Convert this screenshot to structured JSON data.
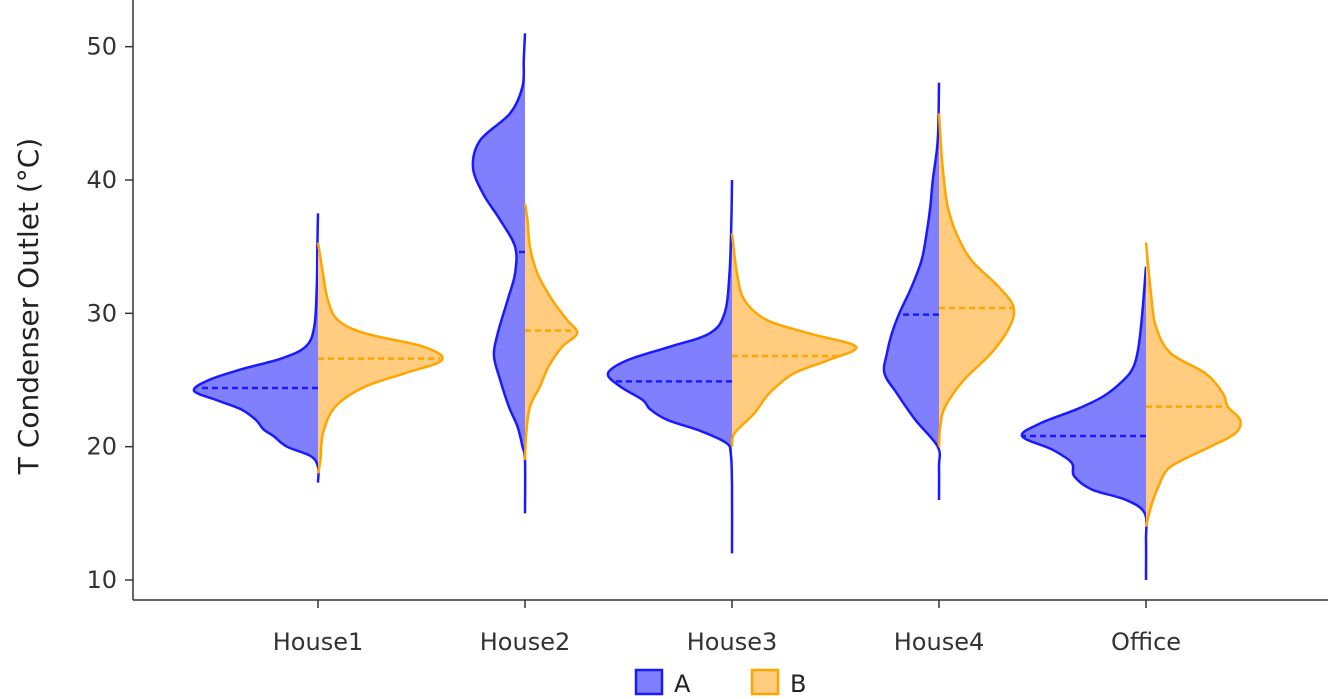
{
  "chart_data": {
    "type": "violin",
    "title": "",
    "xlabel": "",
    "ylabel": "T Condenser Outlet (°C)",
    "ylim": [
      8.5,
      53.5
    ],
    "yticks": [
      10,
      20,
      30,
      40,
      50
    ],
    "categories": [
      "House1",
      "House2",
      "House3",
      "House4",
      "Office"
    ],
    "legend": {
      "position": "bottom",
      "entries": [
        "A",
        "B"
      ]
    },
    "grid": false,
    "split": true,
    "colors": {
      "A": "#1a1aff",
      "B": "#ffa500",
      "A_fill": "#8080ff",
      "B_fill": "#ffcc80"
    },
    "series": [
      {
        "name": "A",
        "side": "left",
        "medians": [
          24.4,
          34.6,
          24.9,
          29.9,
          20.8
        ],
        "violins": [
          {
            "category": "House1",
            "points": [
              [
                17.3,
                0.0
              ],
              [
                18.5,
                0.0
              ],
              [
                19.3,
                0.06
              ],
              [
                20.0,
                0.25
              ],
              [
                20.8,
                0.36
              ],
              [
                21.3,
                0.44
              ],
              [
                22.0,
                0.5
              ],
              [
                22.8,
                0.62
              ],
              [
                23.5,
                0.82
              ],
              [
                24.2,
                1.0
              ],
              [
                25.0,
                0.88
              ],
              [
                25.8,
                0.62
              ],
              [
                26.6,
                0.3
              ],
              [
                27.5,
                0.1
              ],
              [
                29.0,
                0.03
              ],
              [
                32.0,
                0.01
              ],
              [
                35.0,
                0.005
              ],
              [
                37.5,
                0.0
              ]
            ]
          },
          {
            "category": "House2",
            "points": [
              [
                15.0,
                0.0
              ],
              [
                19.0,
                0.0
              ],
              [
                20.0,
                0.02
              ],
              [
                21.5,
                0.06
              ],
              [
                23.0,
                0.13
              ],
              [
                25.0,
                0.2
              ],
              [
                26.8,
                0.25
              ],
              [
                28.5,
                0.22
              ],
              [
                31.0,
                0.14
              ],
              [
                33.0,
                0.08
              ],
              [
                35.0,
                0.08
              ],
              [
                37.0,
                0.2
              ],
              [
                39.0,
                0.34
              ],
              [
                41.0,
                0.42
              ],
              [
                43.0,
                0.36
              ],
              [
                45.0,
                0.12
              ],
              [
                47.0,
                0.02
              ],
              [
                49.0,
                0.01
              ],
              [
                51.0,
                0.0
              ]
            ]
          },
          {
            "category": "House3",
            "points": [
              [
                12.0,
                0.0
              ],
              [
                17.0,
                0.0
              ],
              [
                19.5,
                0.01
              ],
              [
                20.3,
                0.05
              ],
              [
                21.2,
                0.26
              ],
              [
                22.0,
                0.52
              ],
              [
                22.8,
                0.66
              ],
              [
                23.5,
                0.72
              ],
              [
                24.5,
                0.9
              ],
              [
                25.5,
                1.0
              ],
              [
                26.5,
                0.84
              ],
              [
                27.5,
                0.5
              ],
              [
                28.5,
                0.18
              ],
              [
                30.0,
                0.06
              ],
              [
                33.0,
                0.02
              ],
              [
                37.0,
                0.005
              ],
              [
                40.0,
                0.0
              ]
            ]
          },
          {
            "category": "House4",
            "points": [
              [
                16.0,
                0.0
              ],
              [
                18.5,
                0.0
              ],
              [
                20.0,
                0.01
              ],
              [
                22.0,
                0.19
              ],
              [
                24.0,
                0.34
              ],
              [
                25.5,
                0.44
              ],
              [
                27.0,
                0.42
              ],
              [
                28.5,
                0.38
              ],
              [
                30.0,
                0.32
              ],
              [
                32.0,
                0.22
              ],
              [
                34.0,
                0.14
              ],
              [
                36.0,
                0.1
              ],
              [
                38.0,
                0.07
              ],
              [
                40.0,
                0.05
              ],
              [
                43.0,
                0.01
              ],
              [
                47.3,
                0.0
              ]
            ]
          },
          {
            "category": "Office",
            "points": [
              [
                10.0,
                0.0
              ],
              [
                13.0,
                0.0
              ],
              [
                15.0,
                0.01
              ],
              [
                16.0,
                0.16
              ],
              [
                16.8,
                0.44
              ],
              [
                17.8,
                0.58
              ],
              [
                18.8,
                0.6
              ],
              [
                19.8,
                0.76
              ],
              [
                20.8,
                1.0
              ],
              [
                21.8,
                0.84
              ],
              [
                22.8,
                0.56
              ],
              [
                23.8,
                0.34
              ],
              [
                25.0,
                0.18
              ],
              [
                26.0,
                0.1
              ],
              [
                27.5,
                0.06
              ],
              [
                30.0,
                0.03
              ],
              [
                33.5,
                0.0
              ]
            ]
          }
        ]
      },
      {
        "name": "B",
        "side": "right",
        "medians": [
          26.6,
          28.7,
          26.8,
          30.4,
          23.0
        ],
        "violins": [
          {
            "category": "House1",
            "points": [
              [
                18.0,
                0.0
              ],
              [
                19.0,
                0.02
              ],
              [
                21.0,
                0.04
              ],
              [
                23.0,
                0.14
              ],
              [
                24.5,
                0.38
              ],
              [
                25.5,
                0.7
              ],
              [
                26.5,
                1.0
              ],
              [
                27.5,
                0.85
              ],
              [
                28.5,
                0.38
              ],
              [
                29.5,
                0.16
              ],
              [
                31.0,
                0.08
              ],
              [
                33.0,
                0.04
              ],
              [
                35.3,
                0.0
              ]
            ]
          },
          {
            "category": "House2",
            "points": [
              [
                19.0,
                0.0
              ],
              [
                21.0,
                0.01
              ],
              [
                23.0,
                0.04
              ],
              [
                24.5,
                0.12
              ],
              [
                26.0,
                0.19
              ],
              [
                27.5,
                0.3
              ],
              [
                28.5,
                0.42
              ],
              [
                29.5,
                0.34
              ],
              [
                31.0,
                0.22
              ],
              [
                33.0,
                0.1
              ],
              [
                35.0,
                0.04
              ],
              [
                37.0,
                0.02
              ],
              [
                38.2,
                0.0
              ]
            ]
          },
          {
            "category": "House3",
            "points": [
              [
                20.0,
                0.0
              ],
              [
                21.0,
                0.02
              ],
              [
                22.5,
                0.18
              ],
              [
                24.0,
                0.3
              ],
              [
                25.5,
                0.5
              ],
              [
                26.5,
                0.78
              ],
              [
                27.5,
                1.0
              ],
              [
                28.5,
                0.62
              ],
              [
                29.5,
                0.28
              ],
              [
                31.0,
                0.1
              ],
              [
                33.0,
                0.04
              ],
              [
                36.0,
                0.0
              ]
            ]
          },
          {
            "category": "House4",
            "points": [
              [
                20.0,
                0.0
              ],
              [
                21.5,
                0.01
              ],
              [
                23.0,
                0.05
              ],
              [
                25.0,
                0.2
              ],
              [
                27.0,
                0.42
              ],
              [
                29.0,
                0.57
              ],
              [
                30.5,
                0.6
              ],
              [
                32.0,
                0.48
              ],
              [
                34.0,
                0.26
              ],
              [
                36.0,
                0.14
              ],
              [
                38.0,
                0.07
              ],
              [
                40.0,
                0.04
              ],
              [
                42.0,
                0.02
              ],
              [
                45.0,
                0.0
              ]
            ]
          },
          {
            "category": "Office",
            "points": [
              [
                14.0,
                0.0
              ],
              [
                15.5,
                0.04
              ],
              [
                17.0,
                0.1
              ],
              [
                18.5,
                0.2
              ],
              [
                20.0,
                0.52
              ],
              [
                21.0,
                0.72
              ],
              [
                22.0,
                0.76
              ],
              [
                23.0,
                0.66
              ],
              [
                24.0,
                0.62
              ],
              [
                25.5,
                0.48
              ],
              [
                27.0,
                0.2
              ],
              [
                29.0,
                0.08
              ],
              [
                31.5,
                0.04
              ],
              [
                35.3,
                0.0
              ]
            ]
          }
        ]
      }
    ]
  }
}
